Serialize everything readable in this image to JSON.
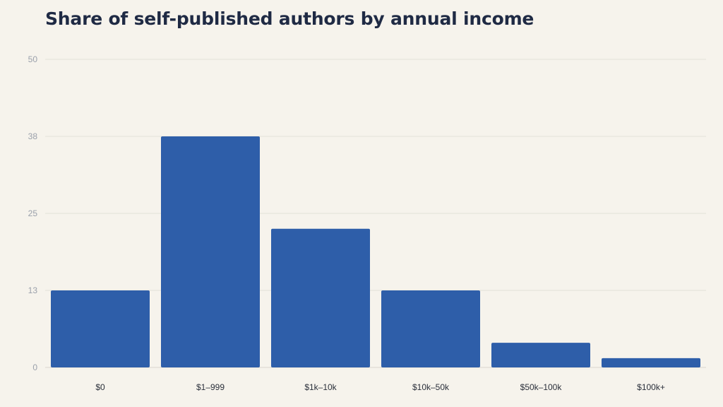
{
  "chart_data": {
    "type": "bar",
    "title": "Share of self-published authors by annual income",
    "xlabel": "",
    "ylabel": "",
    "categories": [
      "$0",
      "$1–999",
      "$1k–10k",
      "$10k–50k",
      "$50k–100k",
      "$100k+"
    ],
    "values": [
      12.5,
      37.5,
      22.5,
      12.5,
      4,
      1.5
    ],
    "y_ticks": [
      "0",
      "13",
      "25",
      "38",
      "50"
    ],
    "y_tick_values": [
      0,
      12.5,
      25,
      37.5,
      50
    ],
    "ylim": [
      0,
      50
    ],
    "grid": true,
    "legend": "none",
    "bar_color": "#2e5ea9"
  }
}
